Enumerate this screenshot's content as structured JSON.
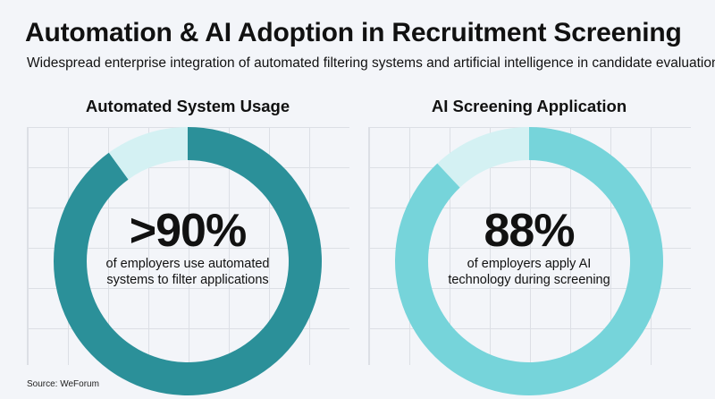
{
  "title": "Automation & AI Adoption in Recruitment Screening",
  "subtitle": "Widespread enterprise integration of automated filtering systems and artificial intelligence in candidate evaluation",
  "source": "Source: WeForum",
  "colors": {
    "primary_dark": "#2b9099",
    "primary_light": "#76d4da",
    "remainder": "#d4f1f3"
  },
  "chart_data": [
    {
      "type": "pie",
      "title": "Automated System Usage",
      "values": [
        90,
        10
      ],
      "value_label": ">90%",
      "description_lines": [
        "of employers use automated",
        "systems to filter applications"
      ]
    },
    {
      "type": "pie",
      "title": "AI Screening Application",
      "values": [
        88,
        12
      ],
      "value_label": "88%",
      "description_lines": [
        "of employers apply AI",
        "technology during screening"
      ]
    }
  ]
}
